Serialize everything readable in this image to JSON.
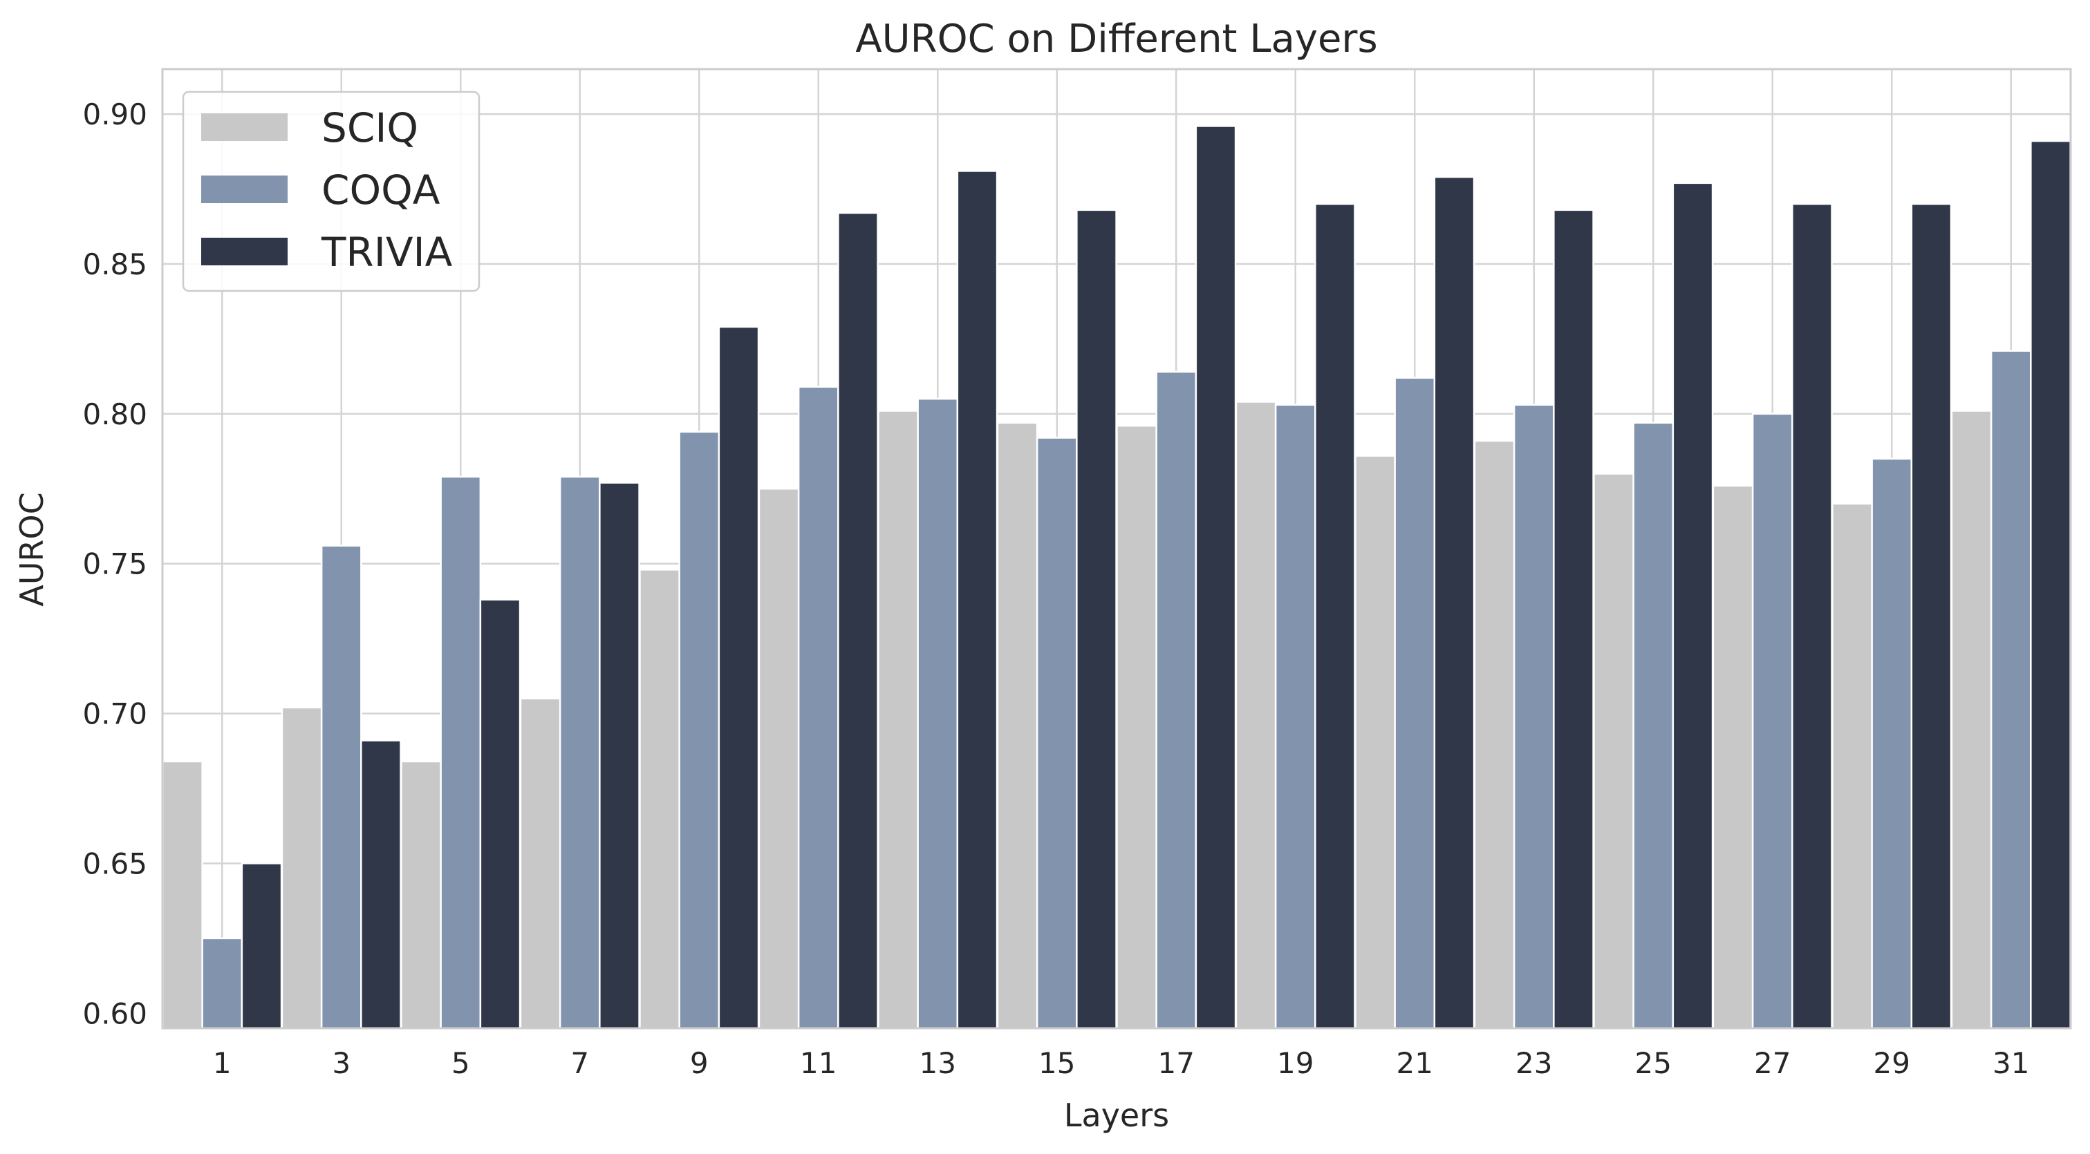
{
  "chart_data": {
    "type": "bar",
    "title": "AUROC on Different Layers",
    "xlabel": "Layers",
    "ylabel": "AUROC",
    "categories": [
      "1",
      "3",
      "5",
      "7",
      "9",
      "11",
      "13",
      "15",
      "17",
      "19",
      "21",
      "23",
      "25",
      "27",
      "29",
      "31"
    ],
    "ylim": [
      0.595,
      0.915
    ],
    "yticks": [
      0.6,
      0.65,
      0.7,
      0.75,
      0.8,
      0.85,
      0.9
    ],
    "ytick_labels": [
      "0.60",
      "0.65",
      "0.70",
      "0.75",
      "0.80",
      "0.85",
      "0.90"
    ],
    "grid": true,
    "legend_position": "top-left",
    "series": [
      {
        "name": "SCIQ",
        "color": "#c8c8c8",
        "values": [
          0.684,
          0.702,
          0.684,
          0.705,
          0.748,
          0.775,
          0.801,
          0.797,
          0.796,
          0.804,
          0.786,
          0.791,
          0.78,
          0.776,
          0.77,
          0.801
        ]
      },
      {
        "name": "COQA",
        "color": "#8294ad",
        "values": [
          0.625,
          0.756,
          0.779,
          0.779,
          0.794,
          0.809,
          0.805,
          0.792,
          0.814,
          0.803,
          0.812,
          0.803,
          0.797,
          0.8,
          0.785,
          0.821
        ]
      },
      {
        "name": "TRIVIA",
        "color": "#2f3749",
        "values": [
          0.65,
          0.691,
          0.738,
          0.777,
          0.829,
          0.867,
          0.881,
          0.868,
          0.896,
          0.87,
          0.879,
          0.868,
          0.877,
          0.87,
          0.87,
          0.891
        ]
      }
    ]
  }
}
